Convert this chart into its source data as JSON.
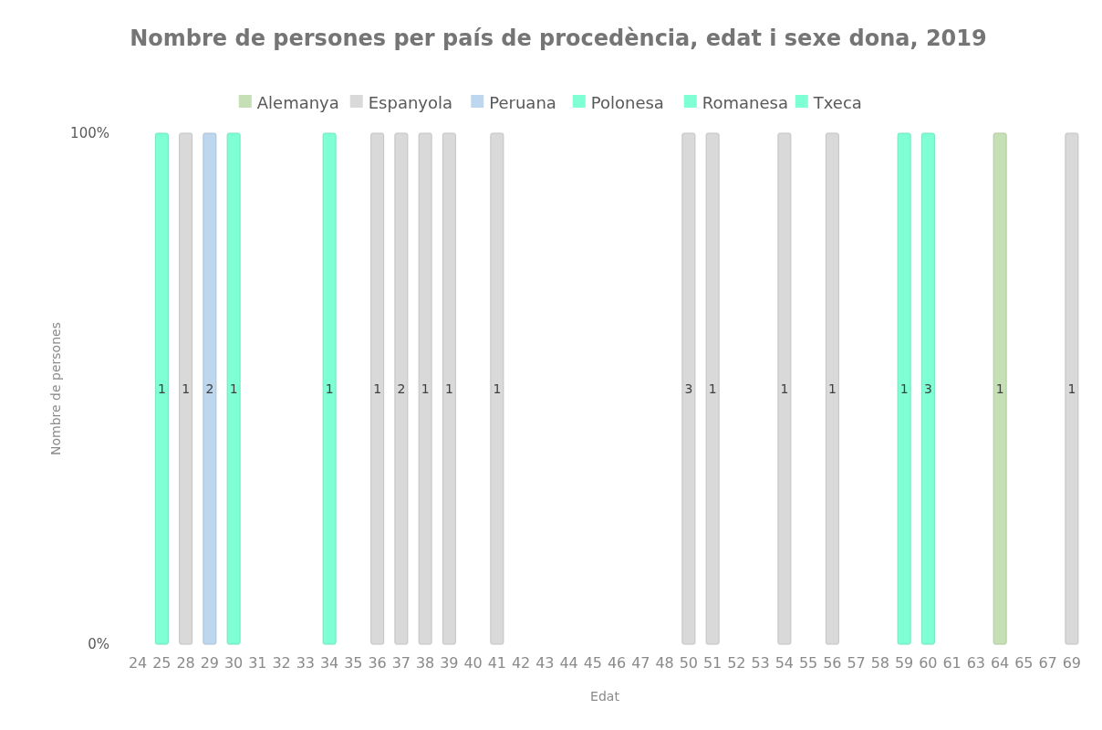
{
  "chart_data": {
    "type": "bar",
    "stacked": true,
    "grid": false,
    "title": "Nombre de persones per país de procedència, edat i sexe dona, 2019",
    "xlabel": "Edat",
    "ylabel": "Nombre de persones",
    "categories": [
      "24",
      "25",
      "28",
      "29",
      "30",
      "31",
      "32",
      "33",
      "34",
      "35",
      "36",
      "37",
      "38",
      "39",
      "40",
      "41",
      "42",
      "43",
      "44",
      "45",
      "46",
      "47",
      "48",
      "50",
      "51",
      "52",
      "53",
      "54",
      "55",
      "56",
      "57",
      "58",
      "59",
      "60",
      "61",
      "63",
      "64",
      "65",
      "67",
      "69"
    ],
    "ylim": [
      0,
      100
    ],
    "yticks": [
      {
        "value": 0,
        "label": "0%"
      },
      {
        "value": 100,
        "label": "100%"
      }
    ],
    "legend": "top",
    "series": [
      {
        "name": "Alemanya",
        "color": "#c5e0b4",
        "values": [
          null,
          null,
          null,
          null,
          null,
          null,
          null,
          null,
          null,
          null,
          null,
          null,
          null,
          null,
          null,
          null,
          null,
          null,
          null,
          null,
          null,
          null,
          null,
          null,
          null,
          null,
          null,
          null,
          null,
          null,
          null,
          null,
          null,
          null,
          null,
          null,
          100,
          null,
          null,
          null
        ]
      },
      {
        "name": "Espanyola",
        "color": "#d9d9d9",
        "values": [
          null,
          null,
          100,
          null,
          null,
          null,
          null,
          null,
          null,
          null,
          100,
          100,
          100,
          100,
          null,
          100,
          null,
          null,
          null,
          null,
          null,
          null,
          null,
          100,
          100,
          null,
          null,
          100,
          null,
          100,
          null,
          null,
          null,
          null,
          null,
          null,
          null,
          null,
          null,
          100
        ]
      },
      {
        "name": "Peruana",
        "color": "#bdd7ee",
        "values": [
          null,
          null,
          null,
          100,
          null,
          null,
          null,
          null,
          null,
          null,
          null,
          null,
          null,
          null,
          null,
          null,
          null,
          null,
          null,
          null,
          null,
          null,
          null,
          null,
          null,
          null,
          null,
          null,
          null,
          null,
          null,
          null,
          null,
          null,
          null,
          null,
          null,
          null,
          null,
          null
        ]
      },
      {
        "name": "Polonesa",
        "color": "#7fffd4",
        "values": [
          null,
          100,
          null,
          null,
          null,
          null,
          null,
          null,
          null,
          null,
          null,
          null,
          null,
          null,
          null,
          null,
          null,
          null,
          null,
          null,
          null,
          null,
          null,
          null,
          null,
          null,
          null,
          null,
          null,
          null,
          null,
          null,
          null,
          null,
          null,
          null,
          null,
          null,
          null,
          null
        ]
      },
      {
        "name": "Romanesa",
        "color": "#7fffd4",
        "values": [
          null,
          null,
          null,
          null,
          100,
          null,
          null,
          null,
          100,
          null,
          null,
          null,
          null,
          null,
          null,
          null,
          null,
          null,
          null,
          null,
          null,
          null,
          null,
          null,
          null,
          null,
          null,
          null,
          null,
          null,
          null,
          null,
          null,
          100,
          null,
          null,
          null,
          null,
          null,
          null
        ]
      },
      {
        "name": "Txeca",
        "color": "#7fffd4",
        "values": [
          null,
          null,
          null,
          null,
          null,
          null,
          null,
          null,
          null,
          null,
          null,
          null,
          null,
          null,
          null,
          null,
          null,
          null,
          null,
          null,
          null,
          null,
          null,
          null,
          null,
          null,
          null,
          null,
          null,
          null,
          null,
          null,
          100,
          null,
          null,
          null,
          null,
          null,
          null,
          null
        ]
      }
    ],
    "annotations": [
      "1",
      "1",
      "2",
      "1",
      "1",
      "1",
      "2",
      "1",
      "1",
      "1",
      "3",
      "1",
      "1",
      "1",
      "1",
      "3",
      "1",
      "1"
    ]
  }
}
